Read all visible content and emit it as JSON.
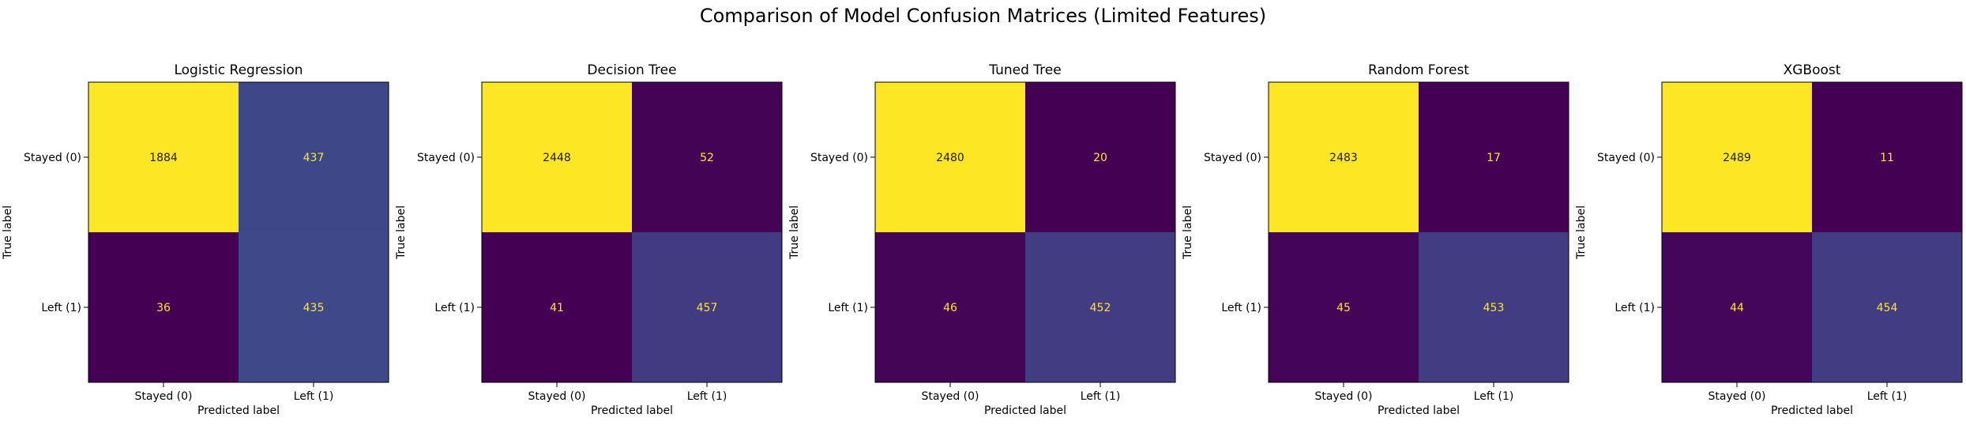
{
  "figure": {
    "title": "Comparison of Model Confusion Matrices (Limited Features)"
  },
  "chart_data": [
    {
      "type": "heatmap",
      "title": "Logistic Regression",
      "xlabel": "Predicted label",
      "ylabel": "True label",
      "x_categories": [
        "Stayed (0)",
        "Left (1)"
      ],
      "y_categories": [
        "Stayed (0)",
        "Left (1)"
      ],
      "values": [
        [
          1884,
          437
        ],
        [
          36,
          435
        ]
      ],
      "colormap": "viridis",
      "grid": false
    },
    {
      "type": "heatmap",
      "title": "Decision Tree",
      "xlabel": "Predicted label",
      "ylabel": "True label",
      "x_categories": [
        "Stayed (0)",
        "Left (1)"
      ],
      "y_categories": [
        "Stayed (0)",
        "Left (1)"
      ],
      "values": [
        [
          2448,
          52
        ],
        [
          41,
          457
        ]
      ],
      "colormap": "viridis",
      "grid": false
    },
    {
      "type": "heatmap",
      "title": "Tuned Tree",
      "xlabel": "Predicted label",
      "ylabel": "True label",
      "x_categories": [
        "Stayed (0)",
        "Left (1)"
      ],
      "y_categories": [
        "Stayed (0)",
        "Left (1)"
      ],
      "values": [
        [
          2480,
          20
        ],
        [
          46,
          452
        ]
      ],
      "colormap": "viridis",
      "grid": false
    },
    {
      "type": "heatmap",
      "title": "Random Forest",
      "xlabel": "Predicted label",
      "ylabel": "True label",
      "x_categories": [
        "Stayed (0)",
        "Left (1)"
      ],
      "y_categories": [
        "Stayed (0)",
        "Left (1)"
      ],
      "values": [
        [
          2483,
          17
        ],
        [
          45,
          453
        ]
      ],
      "colormap": "viridis",
      "grid": false
    },
    {
      "type": "heatmap",
      "title": "XGBoost",
      "xlabel": "Predicted label",
      "ylabel": "True label",
      "x_categories": [
        "Stayed (0)",
        "Left (1)"
      ],
      "y_categories": [
        "Stayed (0)",
        "Left (1)"
      ],
      "values": [
        [
          2489,
          11
        ],
        [
          44,
          454
        ]
      ],
      "colormap": "viridis",
      "grid": false
    }
  ]
}
